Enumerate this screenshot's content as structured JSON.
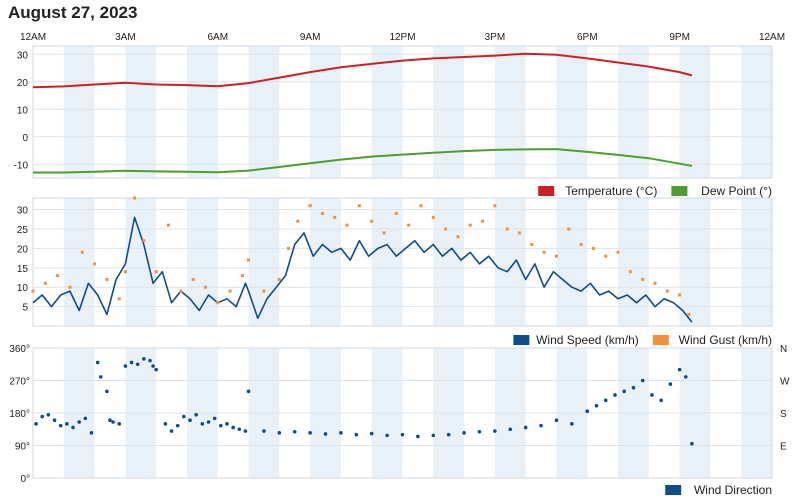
{
  "page_title": "August 27, 2023",
  "x_ticks": [
    "12AM",
    "3AM",
    "6AM",
    "9AM",
    "12PM",
    "3PM",
    "6PM",
    "9PM",
    "12AM"
  ],
  "chart_data": [
    {
      "type": "line",
      "id": "temperature-dewpoint",
      "x_unit": "hours since midnight",
      "xlim": [
        0,
        24
      ],
      "ylim": [
        -15,
        33
      ],
      "yticks": [
        -10,
        0,
        10,
        20,
        30
      ],
      "series": [
        {
          "name": "Temperature (°C)",
          "color": "#cc2027",
          "x": [
            0,
            1,
            2,
            3,
            4,
            5,
            6,
            7,
            8,
            9,
            10,
            11,
            12,
            13,
            14,
            15,
            16,
            17,
            18,
            19,
            20,
            21,
            21.4
          ],
          "y": [
            18,
            18.3,
            19,
            19.6,
            19,
            18.8,
            18.4,
            19.5,
            21.5,
            23.5,
            25.3,
            26.5,
            27.7,
            28.5,
            29,
            29.5,
            30.2,
            29.8,
            28.5,
            27,
            25.5,
            23.5,
            22.3
          ]
        },
        {
          "name": "Dew Point (°)",
          "color": "#4c9e2f",
          "x": [
            0,
            1,
            2,
            3,
            4,
            5,
            6,
            7,
            8,
            9,
            10,
            11,
            12,
            13,
            14,
            15,
            16,
            17,
            18,
            19,
            20,
            21,
            21.4
          ],
          "y": [
            -13,
            -13,
            -12.7,
            -12.4,
            -12.6,
            -12.7,
            -12.9,
            -12.3,
            -11,
            -9.6,
            -8.3,
            -7.2,
            -6.5,
            -5.8,
            -5.2,
            -4.8,
            -4.6,
            -4.5,
            -5.5,
            -6.6,
            -7.8,
            -9.8,
            -10.6
          ]
        }
      ]
    },
    {
      "type": "line",
      "id": "wind-speed-gust",
      "x_unit": "hours since midnight",
      "xlim": [
        0,
        24
      ],
      "ylim": [
        0,
        33
      ],
      "yticks": [
        5,
        10,
        15,
        20,
        25,
        30
      ],
      "series": [
        {
          "name": "Wind Speed (km/h)",
          "color": "#0f4c8a",
          "x": [
            0,
            0.3,
            0.6,
            0.9,
            1.2,
            1.5,
            1.8,
            2.1,
            2.4,
            2.7,
            3.0,
            3.3,
            3.6,
            3.9,
            4.2,
            4.5,
            4.8,
            5.1,
            5.4,
            5.7,
            6.0,
            6.3,
            6.6,
            6.9,
            7.0,
            7.3,
            7.6,
            7.9,
            8.2,
            8.5,
            8.8,
            9.1,
            9.4,
            9.7,
            10.0,
            10.3,
            10.6,
            10.9,
            11.2,
            11.5,
            11.8,
            12.1,
            12.4,
            12.7,
            13.0,
            13.3,
            13.6,
            13.9,
            14.2,
            14.5,
            14.8,
            15.1,
            15.4,
            15.7,
            16.0,
            16.3,
            16.6,
            16.9,
            17.2,
            17.5,
            17.8,
            18.1,
            18.4,
            18.7,
            19.0,
            19.3,
            19.6,
            19.9,
            20.2,
            20.5,
            20.8,
            21.1,
            21.4
          ],
          "y": [
            6,
            8,
            5,
            8,
            9,
            4,
            11,
            8,
            3,
            12,
            16,
            28,
            21,
            11,
            14,
            6,
            9,
            7,
            4,
            8,
            6,
            7,
            5,
            11,
            9,
            2,
            7,
            10,
            13,
            21,
            24,
            18,
            21,
            19,
            20,
            17,
            22,
            18,
            20,
            21,
            18,
            20,
            22,
            19,
            21,
            18,
            20,
            17,
            19,
            16,
            18,
            15,
            14,
            17,
            12,
            16,
            10,
            14,
            12,
            10,
            9,
            11,
            8,
            9,
            7,
            8,
            6,
            8,
            5,
            7,
            6,
            4,
            1
          ]
        },
        {
          "name": "Wind Gust (km/h)",
          "color": "#f28f3b",
          "x": [
            0,
            0.4,
            0.8,
            1.2,
            1.6,
            2.0,
            2.4,
            2.8,
            3.0,
            3.3,
            3.6,
            4.0,
            4.4,
            4.8,
            5.2,
            5.6,
            6.0,
            6.4,
            6.8,
            7.0,
            7.5,
            8.0,
            8.3,
            8.6,
            9.0,
            9.4,
            9.8,
            10.2,
            10.6,
            11.0,
            11.4,
            11.8,
            12.2,
            12.6,
            13.0,
            13.4,
            13.8,
            14.2,
            14.6,
            15.0,
            15.4,
            15.8,
            16.2,
            16.6,
            17.0,
            17.4,
            17.8,
            18.2,
            18.6,
            19.0,
            19.4,
            19.8,
            20.2,
            20.6,
            21.0,
            21.3
          ],
          "y": [
            9,
            11,
            13,
            10,
            19,
            16,
            12,
            7,
            14,
            33,
            22,
            14,
            26,
            9,
            12,
            10,
            6,
            9,
            13,
            17,
            9,
            12,
            20,
            27,
            31,
            29,
            28,
            26,
            31,
            27,
            24,
            29,
            26,
            31,
            28,
            25,
            23,
            26,
            27,
            31,
            25,
            24,
            21,
            19,
            18,
            25,
            21,
            20,
            18,
            19,
            14,
            12,
            11,
            9,
            8,
            3
          ]
        }
      ]
    },
    {
      "type": "scatter",
      "id": "wind-direction",
      "x_unit": "hours since midnight",
      "xlim": [
        0,
        24
      ],
      "ylim": [
        0,
        360
      ],
      "yticks": [
        0,
        90,
        180,
        270,
        360
      ],
      "ytick_labels": [
        "0°",
        "90°",
        "180°",
        "270°",
        "360°"
      ],
      "right_labels": [
        "N",
        "W",
        "S",
        "E"
      ],
      "series": [
        {
          "name": "Wind Direction",
          "color": "#0f4c8a",
          "x": [
            0.1,
            0.3,
            0.5,
            0.7,
            0.9,
            1.1,
            1.3,
            1.5,
            1.7,
            1.9,
            2.1,
            2.2,
            2.4,
            2.5,
            2.6,
            2.8,
            3.0,
            3.2,
            3.4,
            3.6,
            3.8,
            3.9,
            4.0,
            4.3,
            4.5,
            4.7,
            4.9,
            5.1,
            5.3,
            5.5,
            5.7,
            5.9,
            6.1,
            6.3,
            6.5,
            6.7,
            6.9,
            7.0,
            7.5,
            8.0,
            8.5,
            9.0,
            9.5,
            10.0,
            10.5,
            11.0,
            11.5,
            12.0,
            12.5,
            13.0,
            13.5,
            14.0,
            14.5,
            15.0,
            15.5,
            16.0,
            16.5,
            17.0,
            17.5,
            18.0,
            18.3,
            18.6,
            18.9,
            19.2,
            19.5,
            19.8,
            20.1,
            20.4,
            20.7,
            21.0,
            21.2,
            21.4
          ],
          "y": [
            150,
            170,
            175,
            160,
            145,
            150,
            140,
            155,
            165,
            125,
            320,
            280,
            240,
            160,
            155,
            150,
            310,
            320,
            315,
            330,
            325,
            310,
            300,
            150,
            130,
            145,
            170,
            160,
            175,
            150,
            155,
            165,
            145,
            150,
            140,
            135,
            130,
            240,
            130,
            125,
            128,
            125,
            122,
            125,
            120,
            123,
            118,
            120,
            115,
            118,
            120,
            125,
            128,
            130,
            135,
            140,
            145,
            160,
            150,
            185,
            200,
            215,
            230,
            240,
            250,
            270,
            230,
            215,
            260,
            300,
            280,
            95
          ]
        }
      ]
    }
  ]
}
